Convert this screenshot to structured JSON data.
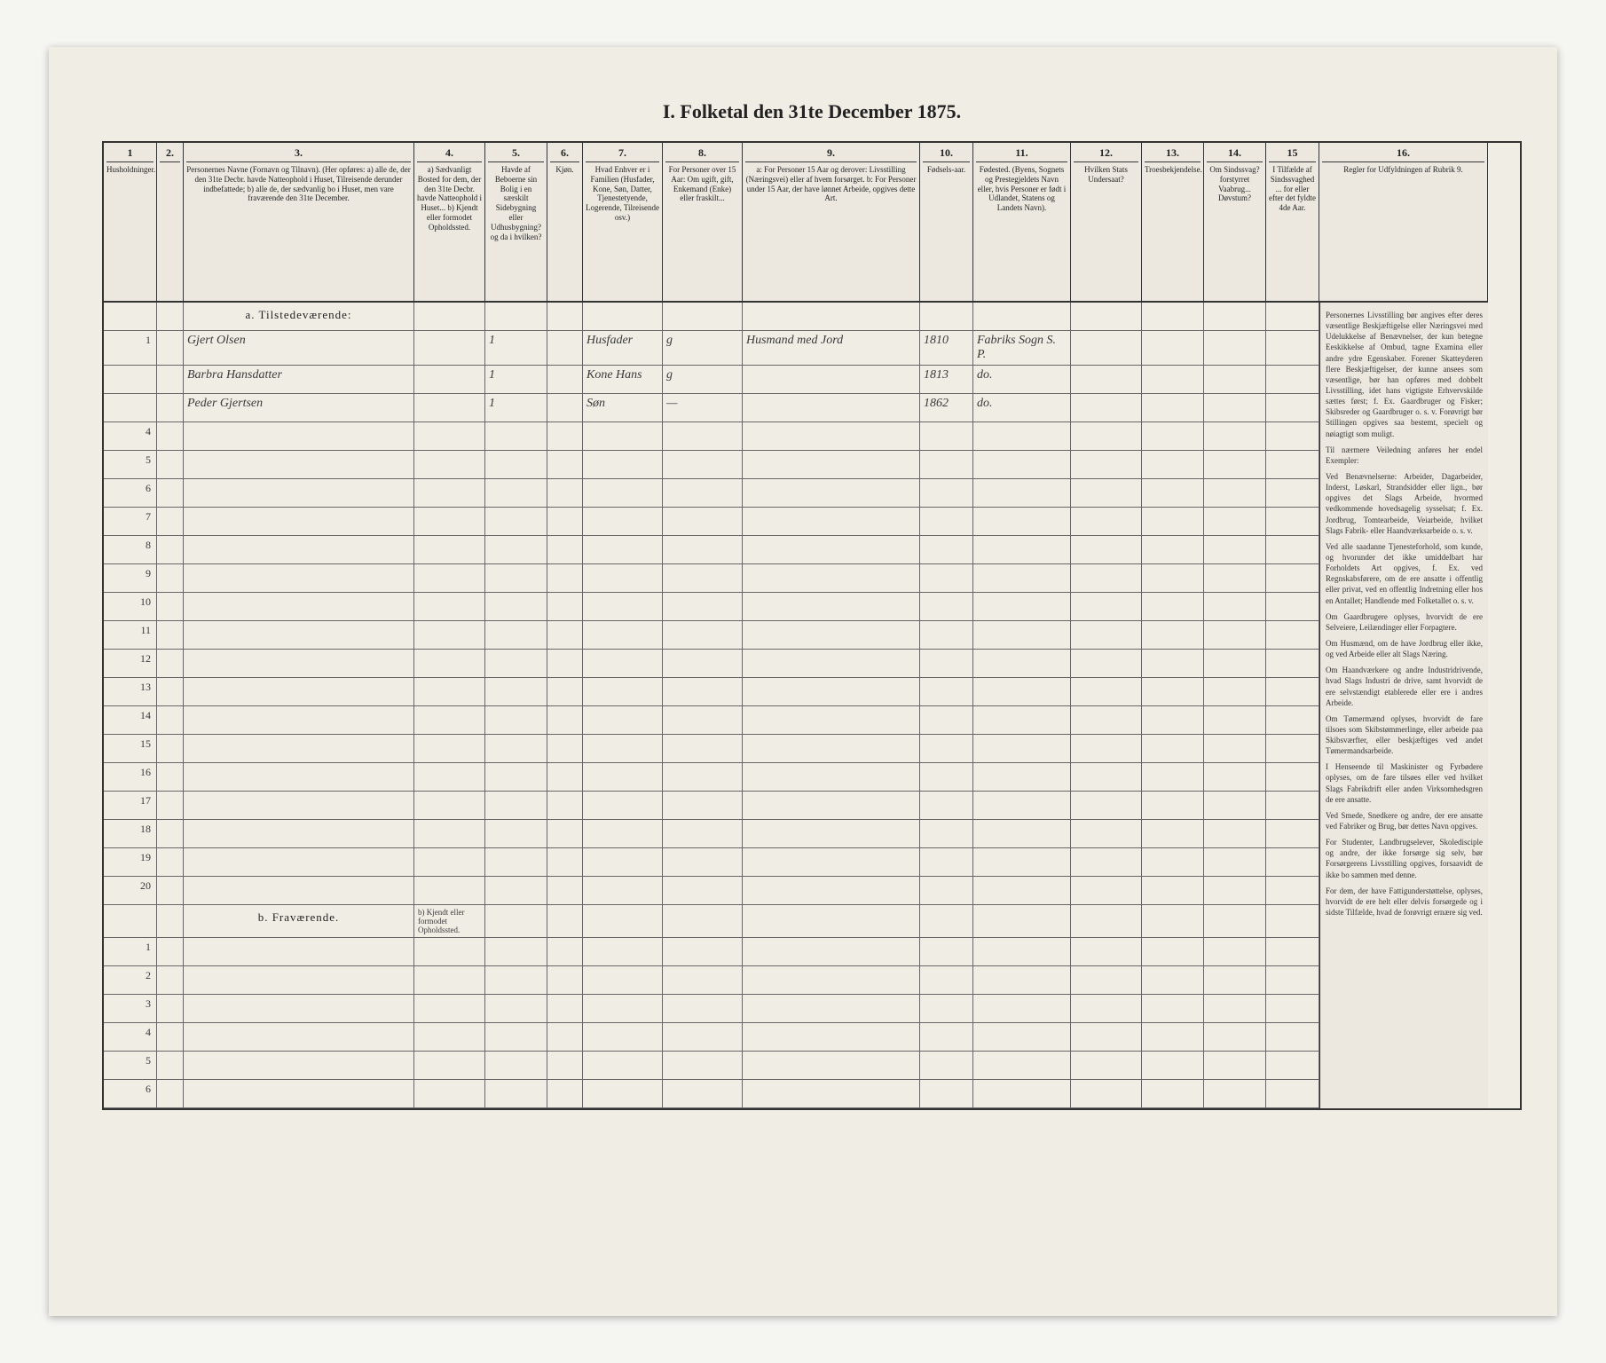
{
  "title": "I. Folketal den 31te December 1875.",
  "columns": [
    {
      "num": "1",
      "text": "Husholdninger."
    },
    {
      "num": "2.",
      "text": ""
    },
    {
      "num": "3.",
      "text": "Personernes Navne (Fornavn og Tilnavn).\n(Her opføres:\na) alle de, der den 31te Decbr. havde Natteophold i Huset, Tilreisende derunder indbefattede;\nb) alle de, der sædvanlig bo i Huset, men vare fraværende den 31te December."
    },
    {
      "num": "4.",
      "text": "a) Sædvanligt Bosted for dem, der den 31te Decbr. havde Natteophold i Huset...\nb) Kjendt eller formodet Opholdssted."
    },
    {
      "num": "5.",
      "text": "Havde af Beboerne sin Bolig i en særskilt Sidebygning eller Udhusbygning? og da i hvilken?"
    },
    {
      "num": "6.",
      "text": "Kjøn."
    },
    {
      "num": "7.",
      "text": "Hvad Enhver er i Familien (Husfader, Kone, Søn, Datter, Tjenestetyende, Logerende, Tilreisende osv.)"
    },
    {
      "num": "8.",
      "text": "For Personer over 15 Aar: Om ugift, gift, Enkemand (Enke) eller fraskilt..."
    },
    {
      "num": "9.",
      "text": "a: For Personer 15 Aar og derover: Livsstilling (Næringsvei) eller af hvem forsørget.\nb: For Personer under 15 Aar, der have lønnet Arbeide, opgives dette Art."
    },
    {
      "num": "10.",
      "text": "Fødsels-aar."
    },
    {
      "num": "11.",
      "text": "Fødested.\n(Byens, Sognets og Prestegjeldets Navn eller, hvis Personer er født i Udlandet, Statens og Landets Navn)."
    },
    {
      "num": "12.",
      "text": "Hvilken Stats Undersaat?"
    },
    {
      "num": "13.",
      "text": "Troesbekjendelse."
    },
    {
      "num": "14.",
      "text": "Om Sindssvag? forstyrret Vaabrug... Døvstum?"
    },
    {
      "num": "15",
      "text": "I Tilfælde af Sindssvaghed ... for eller efter det fyldte 4de Aar."
    },
    {
      "num": "16.",
      "text": "Regler for Udfyldningen af Rubrik 9."
    }
  ],
  "section_a": "a. Tilstedeværende:",
  "section_b": "b. Fraværende.",
  "section_b_col4": "b) Kjendt eller formodet Opholdssted.",
  "rows_a": [
    {
      "n": "1",
      "name": "Gjert Olsen",
      "c5": "1",
      "c7": "Husfader",
      "c8": "g",
      "c9": "Husmand med Jord",
      "c10": "1810",
      "c11": "Fabriks Sogn S. P.",
      "c12": "",
      "c13": ""
    },
    {
      "n": "",
      "name": "Barbra Hansdatter",
      "c5": "1",
      "c7": "Kone Hans",
      "c8": "g",
      "c9": "",
      "c10": "1813",
      "c11": "do.",
      "c12": "",
      "c13": ""
    },
    {
      "n": "",
      "name": "Peder Gjertsen",
      "c5": "1",
      "c7": "Søn",
      "c8": "—",
      "c9": "",
      "c10": "1862",
      "c11": "do.",
      "c12": "",
      "c13": ""
    }
  ],
  "blank_a_rows": [
    "4",
    "5",
    "6",
    "7",
    "8",
    "9",
    "10",
    "11",
    "12",
    "13",
    "14",
    "15",
    "16",
    "17",
    "18",
    "19",
    "20"
  ],
  "rows_b_nums": [
    "1",
    "2",
    "3",
    "4",
    "5",
    "6"
  ],
  "instructions_head": "Regler for Udfyldningen af Rubrik 9.",
  "instructions": [
    "Personernes Livsstilling bør angives efter deres væsentlige Beskjæftigelse eller Næringsvei med Udelukkelse af Benævnelser, der kun betegne Eeskikkelse af Ombud, tagne Examina eller andre ydre Egenskaber. Forener Skatteyderen flere Beskjæftigelser, der kunne ansees som væsentlige, bør han opføres med dobbelt Livsstilling, idet hans vigtigste Erhvervskilde sættes først; f. Ex. Gaardbruger og Fisker; Skibsreder og Gaardbruger o. s. v. Forøvrigt bør Stillingen opgives saa bestemt, specielt og nøiagtigt som muligt.",
    "Til nærmere Veiledning anføres her endel Exempler:",
    "Ved Benævnelserne: Arbeider, Dagarbeider, Inderst, Løskarl, Strandsidder eller lign., bør opgives det Slags Arbeide, hvormed vedkommende hovedsagelig sysselsat; f. Ex. Jordbrug, Tomtearbeide, Veiarbeide, hvilket Slags Fabrik- eller Haandværksarbeide o. s. v.",
    "Ved alle saadanne Tjenesteforhold, som kunde, og hvorunder det ikke umiddelbart har Forholdets Art opgives, f. Ex. ved Regnskabsførere, om de ere ansatte i offentlig eller privat, ved en offentlig Indretning eller hos en Antallet; Handlende med Folketallet o. s. v.",
    "Om Gaardbrugere oplyses, hvorvidt de ere Selveiere, Leilændinger eller Forpagtere.",
    "Om Husmænd, om de have Jordbrug eller ikke, og ved Arbeide eller alt Slags Næring.",
    "Om Haandværkere og andre Industridrivende, hvad Slags Industri de drive, samt hvorvidt de ere selvstændigt etablerede eller ere i andres Arbeide.",
    "Om Tømermænd oplyses, hvorvidt de fare tilsoes som Skibstømmerlinge, eller arbeide paa Skibsværfter, eller beskjæftiges ved andet Tømermandsarbeide.",
    "I Henseende til Maskinister og Fyrbødere oplyses, om de fare tilsøes eller ved hvilket Slags Fabrikdrift eller anden Virksomhedsgren de ere ansatte.",
    "Ved Smede, Snedkere og andre, der ere ansatte ved Fabriker og Brug, bør dettes Navn opgives.",
    "For Studenter, Landbrugselever, Skoledisciple og andre, der ikke forsørge sig selv, bør Forsørgerens Livsstilling opgives, forsaavidt de ikke bo sammen med denne.",
    "For dem, der have Fattigunderstøttelse, oplyses, hvorvidt de ere helt eller delvis forsørgede og i sidste Tilfælde, hvad de forøvrigt ernære sig ved."
  ]
}
